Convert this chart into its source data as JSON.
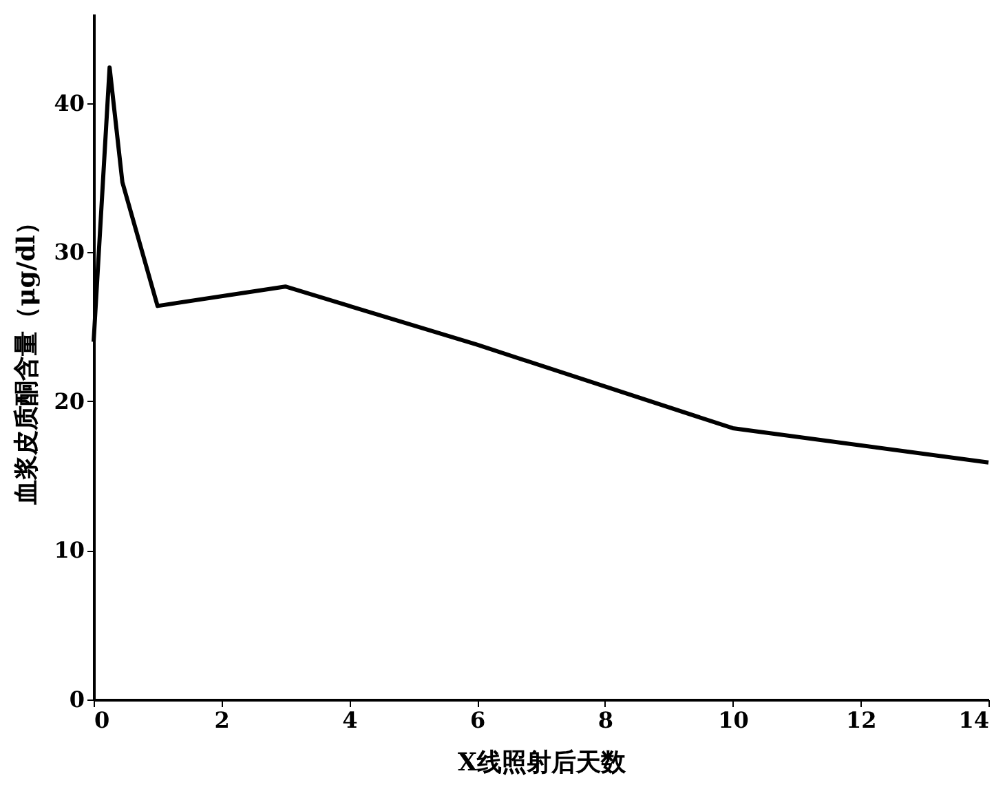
{
  "chart_data": {
    "type": "line",
    "xlabel": "X线照射后天数",
    "ylabel": "血浆皮质酮含量（μg/dl）",
    "x": [
      0,
      0.25,
      0.45,
      1,
      3,
      6,
      10,
      14
    ],
    "series": [
      {
        "color": "#000000",
        "values": [
          24,
          42.4,
          34.7,
          26.4,
          27.7,
          23.8,
          18.2,
          15.9
        ]
      }
    ],
    "xlim": [
      0,
      14
    ],
    "ylim": [
      0,
      46
    ],
    "xticks": [
      0,
      2,
      4,
      6,
      8,
      10,
      12,
      14
    ],
    "yticks": [
      0,
      10,
      20,
      30,
      40
    ],
    "grid": false,
    "marker": "none",
    "line_style": "solid"
  }
}
